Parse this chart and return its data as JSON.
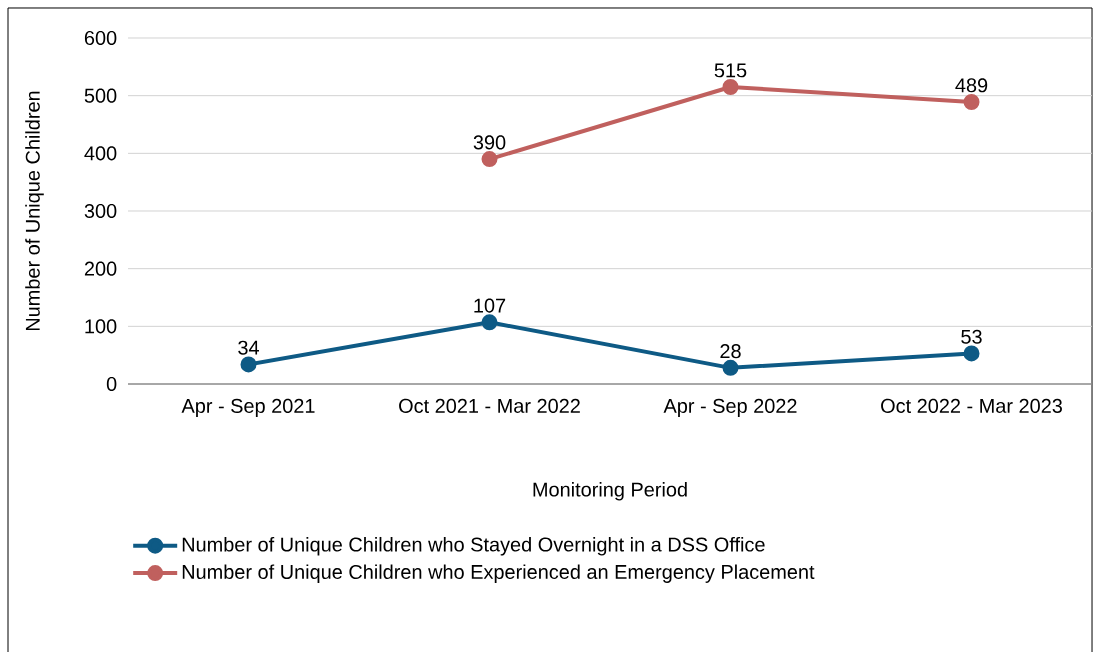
{
  "chart_data": {
    "type": "line",
    "xlabel": "Monitoring Period",
    "ylabel": "Number of Unique Children",
    "categories": [
      "Apr - Sep 2021",
      "Oct 2021 - Mar 2022",
      "Apr - Sep 2022",
      "Oct 2022 - Mar 2023"
    ],
    "series": [
      {
        "name": "Number of Unique Children who Stayed Overnight in a DSS Office",
        "color": "#0e5a85",
        "values": [
          34,
          107,
          28,
          53
        ]
      },
      {
        "name": "Number of Unique Children who Experienced an Emergency Placement",
        "color": "#c0605e",
        "values": [
          null,
          390,
          515,
          489
        ]
      }
    ],
    "ylim": [
      0,
      600
    ],
    "yticks": [
      0,
      100,
      200,
      300,
      400,
      500,
      600
    ],
    "grid": "y",
    "legend": "bottom",
    "marker": "circle",
    "line_style": "solid",
    "data_labels": true
  }
}
